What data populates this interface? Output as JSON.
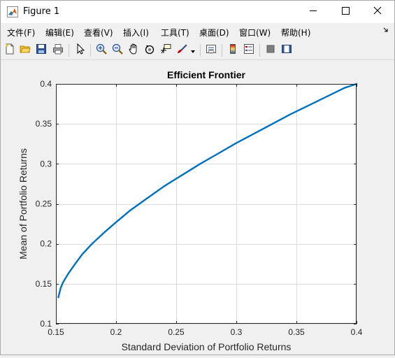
{
  "window": {
    "title": "Figure 1",
    "app_icon": "matlab-icon",
    "controls": [
      "minimize-icon",
      "maximize-icon",
      "close-icon"
    ]
  },
  "menu": {
    "items": [
      {
        "label": "文件(F)"
      },
      {
        "label": "编辑(E)"
      },
      {
        "label": "查看(V)"
      },
      {
        "label": "插入(I)"
      },
      {
        "label": "工具(T)"
      },
      {
        "label": "桌面(D)"
      },
      {
        "label": "窗口(W)"
      },
      {
        "label": "帮助(H)"
      }
    ],
    "overflow_icon": "corner-arrow-icon"
  },
  "toolbar": {
    "icons": [
      "new-figure-icon",
      "open-file-icon",
      "save-icon",
      "print-icon",
      "edit-plot-icon",
      "zoom-in-icon",
      "zoom-out-icon",
      "pan-icon",
      "rotate-3d-icon",
      "data-cursor-icon",
      "brush-icon",
      "link-plot-icon",
      "colorbar-icon",
      "legend-icon",
      "hide-plot-tools-icon",
      "show-plot-tools-icon"
    ]
  },
  "colors": {
    "line": "#0072bd",
    "axes_bg": "#ffffff",
    "figure_bg": "#f0f0f0",
    "grid": "#dcdcdc"
  },
  "chart_data": {
    "type": "line",
    "title": "Efficient Frontier",
    "xlabel": "Standard Deviation of Portfolio Returns",
    "ylabel": "Mean of Portfolio Returns",
    "xlim": [
      0.15,
      0.4
    ],
    "ylim": [
      0.1,
      0.4
    ],
    "xticks": [
      0.15,
      0.2,
      0.25,
      0.3,
      0.35,
      0.4
    ],
    "yticks": [
      0.1,
      0.15,
      0.2,
      0.25,
      0.3,
      0.35,
      0.4
    ],
    "xtick_labels": [
      "0.15",
      "0.2",
      "0.25",
      "0.3",
      "0.35",
      "0.4"
    ],
    "ytick_labels": [
      "0.1",
      "0.15",
      "0.2",
      "0.25",
      "0.3",
      "0.35",
      "0.4"
    ],
    "grid": true,
    "series": [
      {
        "x": [
          0.152,
          0.154,
          0.156,
          0.16,
          0.166,
          0.172,
          0.18,
          0.19,
          0.2,
          0.212,
          0.225,
          0.24,
          0.255,
          0.27,
          0.285,
          0.3,
          0.315,
          0.33,
          0.345,
          0.36,
          0.375,
          0.39,
          0.4
        ],
        "y": [
          0.133,
          0.145,
          0.152,
          0.162,
          0.175,
          0.187,
          0.2,
          0.214,
          0.227,
          0.242,
          0.256,
          0.272,
          0.286,
          0.3,
          0.313,
          0.326,
          0.338,
          0.35,
          0.362,
          0.373,
          0.384,
          0.395,
          0.4
        ]
      }
    ]
  }
}
